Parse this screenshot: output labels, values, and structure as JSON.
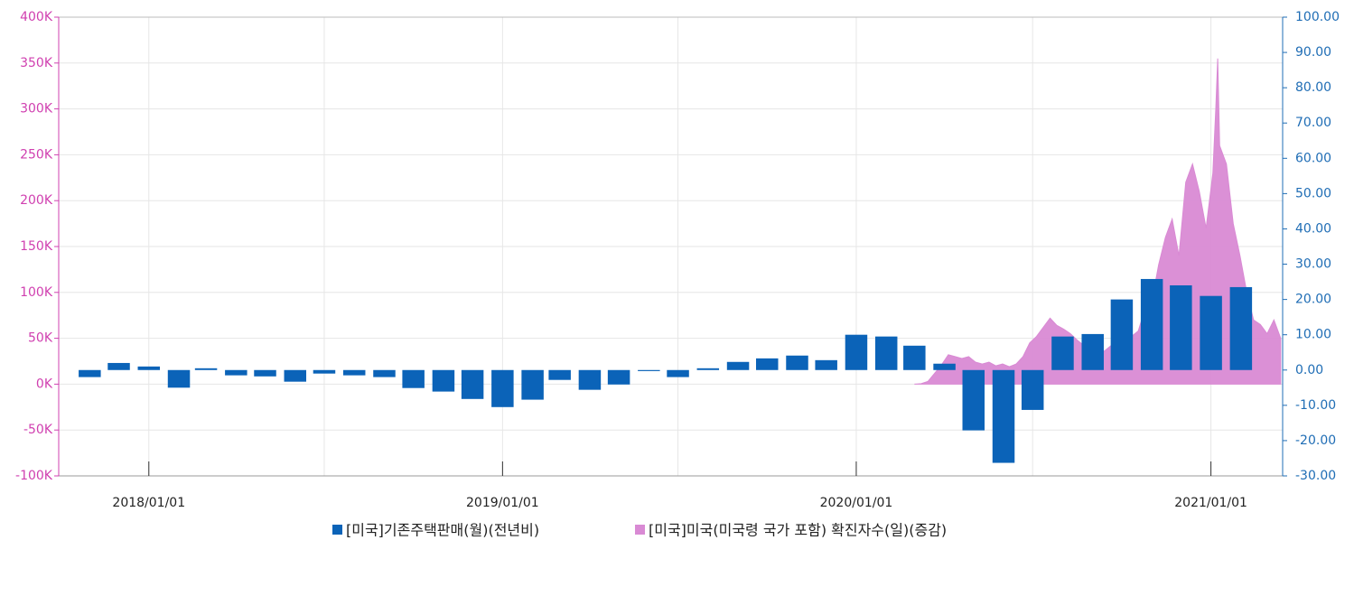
{
  "chart_data": {
    "type": "bar-area",
    "xlim": [
      "2017-09-30",
      "2021-03-16"
    ],
    "xticks": [
      {
        "value": "2018-01-01",
        "label": "2018/01/01"
      },
      {
        "value": "2018-07-01",
        "label": null
      },
      {
        "value": "2019-01-01",
        "label": "2019/01/01"
      },
      {
        "value": "2019-07-01",
        "label": null
      },
      {
        "value": "2020-01-01",
        "label": "2020/01/01"
      },
      {
        "value": "2020-07-01",
        "label": null
      },
      {
        "value": "2021-01-01",
        "label": "2021/01/01"
      }
    ],
    "ylim": [
      -100000,
      400000
    ],
    "yticks": [
      {
        "value": 400000,
        "label": "400K"
      },
      {
        "value": 350000,
        "label": "350K"
      },
      {
        "value": 300000,
        "label": "300K"
      },
      {
        "value": 250000,
        "label": "250K"
      },
      {
        "value": 200000,
        "label": "200K"
      },
      {
        "value": 150000,
        "label": "150K"
      },
      {
        "value": 100000,
        "label": "100K"
      },
      {
        "value": 50000,
        "label": "50K"
      },
      {
        "value": 0,
        "label": "0K"
      },
      {
        "value": -50000,
        "label": "-50K"
      },
      {
        "value": -100000,
        "label": "-100K"
      }
    ],
    "y2lim": [
      -30,
      100
    ],
    "y2ticks": [
      {
        "value": 100,
        "label": "100.00"
      },
      {
        "value": 90,
        "label": "90.00"
      },
      {
        "value": 80,
        "label": "80.00"
      },
      {
        "value": 70,
        "label": "70.00"
      },
      {
        "value": 60,
        "label": "60.00"
      },
      {
        "value": 50,
        "label": "50.00"
      },
      {
        "value": 40,
        "label": "40.00"
      },
      {
        "value": 30,
        "label": "30.00"
      },
      {
        "value": 20,
        "label": "20.00"
      },
      {
        "value": 10,
        "label": "10.00"
      },
      {
        "value": 0,
        "label": "0.00"
      },
      {
        "value": -10,
        "label": "-10.00"
      },
      {
        "value": -20,
        "label": "-20.00"
      },
      {
        "value": -30,
        "label": "-30.00"
      }
    ],
    "grid": true,
    "legend": "bottom",
    "series": [
      {
        "name": "[미국]기존주택판매(월)(전년비)",
        "type": "bar",
        "axis": "y2",
        "color": "#0b63b8",
        "x": [
          "2017-11-01",
          "2017-12-01",
          "2018-01-01",
          "2018-02-01",
          "2018-03-01",
          "2018-04-01",
          "2018-05-01",
          "2018-06-01",
          "2018-07-01",
          "2018-08-01",
          "2018-09-01",
          "2018-10-01",
          "2018-11-01",
          "2018-12-01",
          "2019-01-01",
          "2019-02-01",
          "2019-03-01",
          "2019-04-01",
          "2019-05-01",
          "2019-06-01",
          "2019-07-01",
          "2019-08-01",
          "2019-09-01",
          "2019-10-01",
          "2019-11-01",
          "2019-12-01",
          "2020-01-01",
          "2020-02-01",
          "2020-03-01",
          "2020-04-01",
          "2020-05-01",
          "2020-06-01",
          "2020-07-01",
          "2020-08-01",
          "2020-09-01",
          "2020-10-01",
          "2020-11-01",
          "2020-12-01",
          "2021-01-01",
          "2021-02-01"
        ],
        "values": [
          -2.0,
          2.0,
          1.0,
          -5.0,
          0.5,
          -1.5,
          -1.8,
          -3.3,
          -1.0,
          -1.5,
          -2.0,
          -5.1,
          -6.1,
          -8.2,
          -10.5,
          -8.4,
          -2.8,
          -5.6,
          -4.1,
          -0.3,
          -2.0,
          0.5,
          2.3,
          3.3,
          4.1,
          2.8,
          10.0,
          9.5,
          6.9,
          1.8,
          -17.1,
          -26.3,
          -11.3,
          9.5,
          10.2,
          20.0,
          25.8,
          24.0,
          21.0,
          23.5
        ]
      },
      {
        "name": "[미국]미국(미국령 국가 포함) 확진자수(일)(증감)",
        "type": "area",
        "axis": "y",
        "color": "#d98ad4",
        "x": [
          "2020-03-01",
          "2020-03-08",
          "2020-03-15",
          "2020-03-22",
          "2020-03-29",
          "2020-04-05",
          "2020-04-12",
          "2020-04-19",
          "2020-04-26",
          "2020-05-03",
          "2020-05-10",
          "2020-05-17",
          "2020-05-24",
          "2020-05-31",
          "2020-06-07",
          "2020-06-14",
          "2020-06-21",
          "2020-06-28",
          "2020-07-05",
          "2020-07-12",
          "2020-07-19",
          "2020-07-26",
          "2020-08-02",
          "2020-08-09",
          "2020-08-16",
          "2020-08-23",
          "2020-08-30",
          "2020-09-06",
          "2020-09-13",
          "2020-09-20",
          "2020-09-27",
          "2020-10-04",
          "2020-10-11",
          "2020-10-18",
          "2020-10-25",
          "2020-11-01",
          "2020-11-08",
          "2020-11-15",
          "2020-11-22",
          "2020-11-29",
          "2020-12-06",
          "2020-12-13",
          "2020-12-20",
          "2020-12-27",
          "2021-01-03",
          "2021-01-06",
          "2021-01-08",
          "2021-01-10",
          "2021-01-17",
          "2021-01-24",
          "2021-01-31",
          "2021-02-07",
          "2021-02-14",
          "2021-02-21",
          "2021-02-28",
          "2021-03-07",
          "2021-03-14"
        ],
        "values": [
          0,
          500,
          3000,
          12000,
          21000,
          32000,
          30000,
          28000,
          30000,
          24000,
          22000,
          24000,
          20000,
          22000,
          19000,
          22000,
          30000,
          45000,
          52000,
          62000,
          72000,
          64000,
          60000,
          55000,
          48000,
          42000,
          40000,
          38000,
          36000,
          42000,
          40000,
          44000,
          52000,
          58000,
          82000,
          90000,
          130000,
          160000,
          180000,
          140000,
          220000,
          240000,
          210000,
          170000,
          230000,
          300000,
          355000,
          260000,
          240000,
          175000,
          140000,
          100000,
          70000,
          65000,
          55000,
          70000,
          50000
        ]
      }
    ]
  }
}
